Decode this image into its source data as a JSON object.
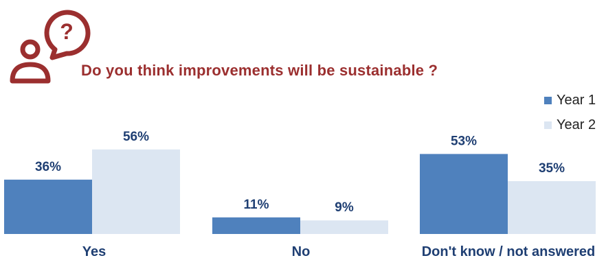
{
  "colors": {
    "accent": "#9b2f2f",
    "year1": "#4f81bd",
    "year2": "#dce6f2",
    "value_text": "#1f3f73",
    "category_text": "#1f3f73"
  },
  "icon": {
    "name": "person-question-icon"
  },
  "chart_data": {
    "type": "bar",
    "title": "Do you think improvements will be sustainable ?",
    "categories": [
      "Yes",
      "No",
      "Don't know / not answered"
    ],
    "series": [
      {
        "name": "Year 1",
        "values": [
          36,
          11,
          53
        ]
      },
      {
        "name": "Year 2",
        "values": [
          56,
          9,
          35
        ]
      }
    ],
    "value_suffix": "%",
    "ylim": [
      0,
      60
    ],
    "grid": false,
    "legend": "top-right"
  }
}
